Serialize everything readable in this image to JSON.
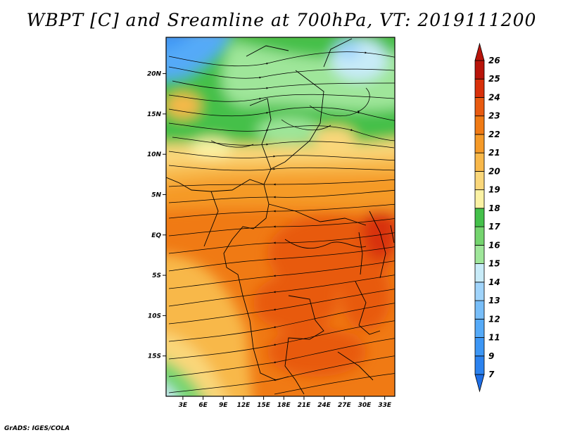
{
  "title": "WBPT [C] and Sreamline at 700hPa, VT: 2019111200",
  "credit": "GrADS: IGES/COLA",
  "map": {
    "lat_labels": [
      "20N",
      "15N",
      "10N",
      "5N",
      "EQ",
      "5S",
      "10S",
      "15S"
    ],
    "lon_labels": [
      "3E",
      "6E",
      "9E",
      "12E",
      "15E",
      "18E",
      "21E",
      "24E",
      "27E",
      "30E",
      "33E"
    ],
    "lat_values": [
      20,
      15,
      10,
      5,
      0,
      -5,
      -10,
      -15
    ],
    "lon_values": [
      3,
      6,
      9,
      12,
      15,
      18,
      21,
      24,
      27,
      30,
      33
    ],
    "lat_range": [
      -20,
      24.5
    ],
    "lon_range": [
      0.5,
      34.5
    ]
  },
  "colorbar": {
    "labels": [
      "7",
      "9",
      "11",
      "12",
      "13",
      "14",
      "15",
      "16",
      "17",
      "18",
      "19",
      "20",
      "21",
      "22",
      "23",
      "24",
      "25",
      "26"
    ],
    "colors": [
      "#1e6ee6",
      "#2b82ef",
      "#3c96f5",
      "#55aaf8",
      "#78bef9",
      "#a0d4fb",
      "#c8ebf8",
      "#9fe69a",
      "#74d46e",
      "#44c04a",
      "#fbf2a4",
      "#fad77a",
      "#f8b84a",
      "#f59a28",
      "#f07a14",
      "#e85a10",
      "#d8300a",
      "#b8140a"
    ]
  }
}
